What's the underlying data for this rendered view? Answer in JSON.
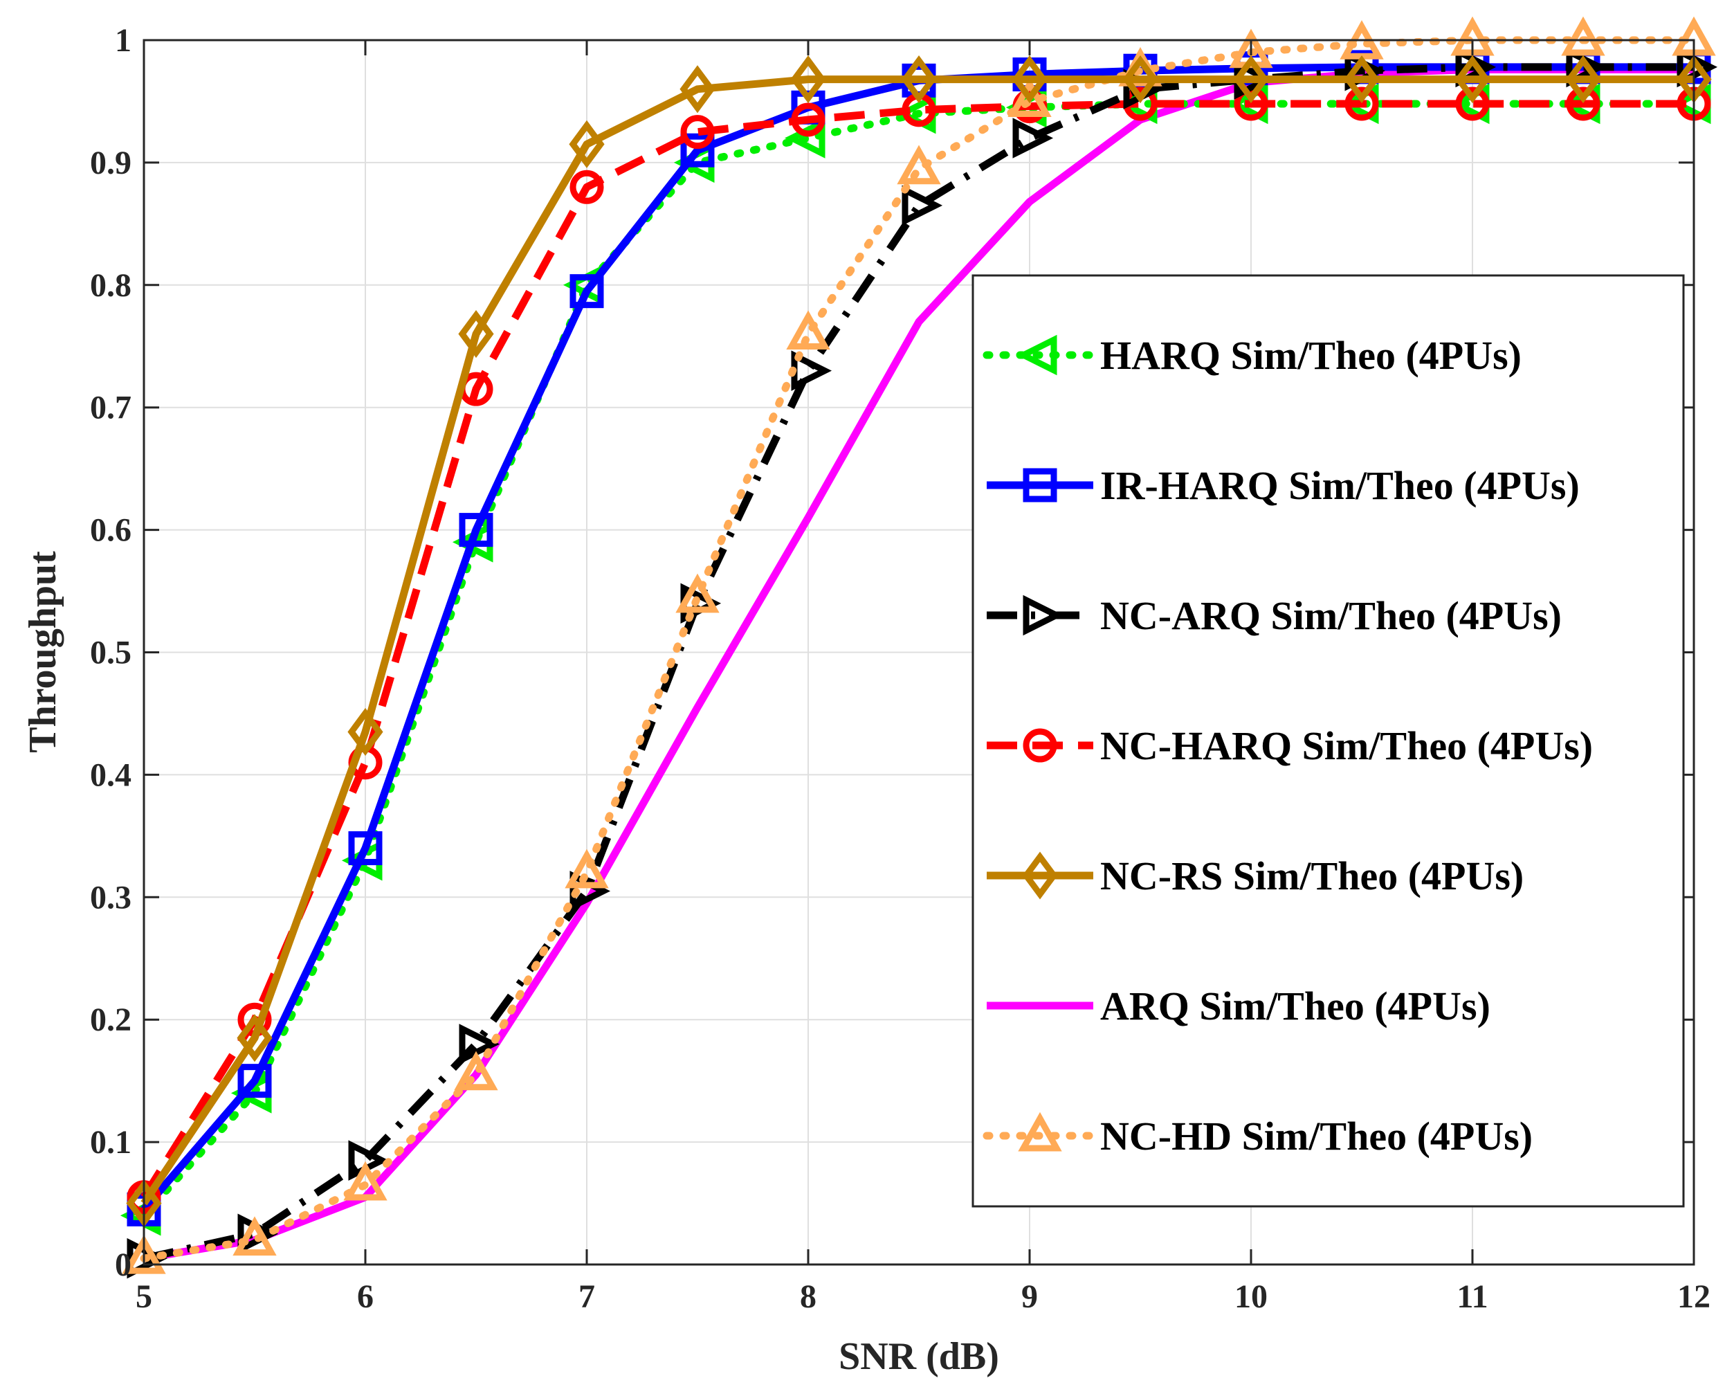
{
  "chart_data": {
    "type": "line",
    "title": "",
    "xlabel": "SNR (dB)",
    "ylabel": "Throughput",
    "xlim": [
      5,
      12
    ],
    "ylim": [
      0,
      1
    ],
    "xticks": [
      "5",
      "6",
      "7",
      "8",
      "9",
      "10",
      "11",
      "12"
    ],
    "yticks": [
      "0",
      "0.1",
      "0.2",
      "0.3",
      "0.4",
      "0.5",
      "0.6",
      "0.7",
      "0.8",
      "0.9",
      "1"
    ],
    "grid": true,
    "legend_position": "center-right",
    "x": [
      5,
      5.5,
      6,
      6.5,
      7,
      7.5,
      8,
      8.5,
      9,
      9.5,
      10,
      10.5,
      11,
      11.5,
      12
    ],
    "series": [
      {
        "name": "HARQ Sim/Theo (4PUs)",
        "color": "#00ee00",
        "dash": "dotted",
        "marker": "triangle-left",
        "values": [
          0.04,
          0.14,
          0.33,
          0.59,
          0.8,
          0.9,
          0.92,
          0.94,
          0.945,
          0.948,
          0.948,
          0.948,
          0.948,
          0.948,
          0.948
        ]
      },
      {
        "name": "IR-HARQ Sim/Theo (4PUs)",
        "color": "#0000ff",
        "dash": "solid",
        "marker": "square",
        "values": [
          0.045,
          0.15,
          0.34,
          0.6,
          0.795,
          0.91,
          0.945,
          0.967,
          0.972,
          0.975,
          0.977,
          0.978,
          0.978,
          0.978,
          0.978
        ]
      },
      {
        "name": "NC-ARQ Sim/Theo (4PUs)",
        "color": "#000000",
        "dash": "dashdot",
        "marker": "triangle-right",
        "values": [
          0.005,
          0.025,
          0.085,
          0.18,
          0.305,
          0.54,
          0.73,
          0.865,
          0.92,
          0.96,
          0.968,
          0.975,
          0.978,
          0.978,
          0.978
        ]
      },
      {
        "name": "NC-HARQ Sim/Theo (4PUs)",
        "color": "#ff0000",
        "dash": "dashed",
        "marker": "circle",
        "values": [
          0.055,
          0.2,
          0.41,
          0.715,
          0.88,
          0.925,
          0.935,
          0.943,
          0.946,
          0.948,
          0.948,
          0.948,
          0.948,
          0.948,
          0.948
        ]
      },
      {
        "name": "NC-RS Sim/Theo (4PUs)",
        "color": "#bf8000",
        "dash": "solid",
        "marker": "diamond",
        "values": [
          0.05,
          0.185,
          0.435,
          0.76,
          0.915,
          0.96,
          0.968,
          0.968,
          0.968,
          0.968,
          0.968,
          0.968,
          0.968,
          0.968,
          0.968
        ]
      },
      {
        "name": "ARQ Sim/Theo (4PUs)",
        "color": "#ff00ff",
        "dash": "solid",
        "marker": "none",
        "values": [
          0.005,
          0.02,
          0.055,
          0.155,
          0.295,
          0.455,
          0.61,
          0.77,
          0.868,
          0.935,
          0.965,
          0.973,
          0.976,
          0.976,
          0.976
        ]
      },
      {
        "name": "NC-HD Sim/Theo (4PUs)",
        "color": "#ffaa55",
        "dash": "dotted",
        "marker": "triangle-up",
        "values": [
          0.005,
          0.02,
          0.065,
          0.155,
          0.32,
          0.545,
          0.76,
          0.895,
          0.95,
          0.975,
          0.99,
          0.997,
          1.0,
          1.0,
          1.0
        ]
      }
    ]
  }
}
